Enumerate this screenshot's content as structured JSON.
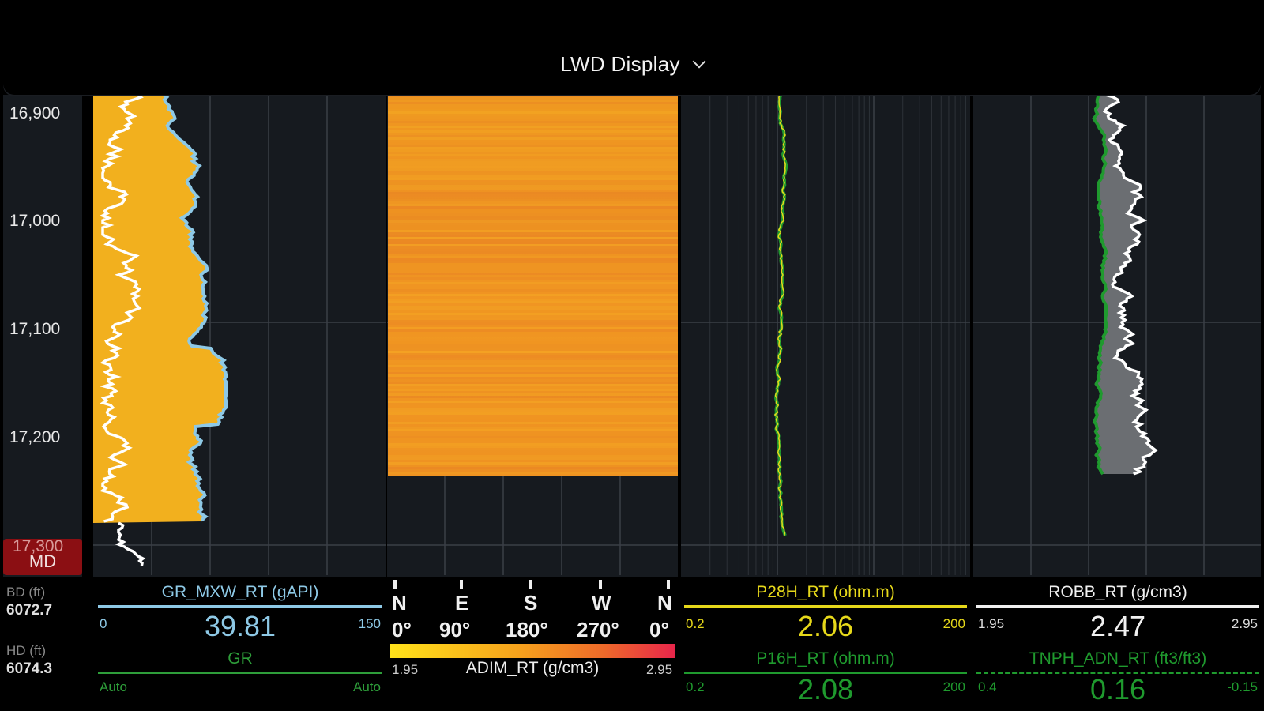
{
  "header": {
    "title": "LWD Display"
  },
  "depth_track": {
    "ticks": [
      "16,900",
      "17,000",
      "17,100",
      "17,200",
      "17,300"
    ],
    "md_label": "MD",
    "bd_label": "BD (ft)",
    "bd_value": "6072.7",
    "hd_label": "HD (ft)",
    "hd_value": "6074.3"
  },
  "gr_track": {
    "curve1": {
      "name": "GR_MXW_RT (gAPI)",
      "min": "0",
      "max": "150",
      "value": "39.81",
      "color": "#8ec9e6"
    },
    "curve2": {
      "name": "GR",
      "min": "Auto",
      "max": "Auto",
      "color": "#2e9e3a"
    },
    "fill_color": "#f2b01e"
  },
  "image_track": {
    "directions": [
      "N",
      "E",
      "S",
      "W",
      "N"
    ],
    "degrees": [
      "0°",
      "90°",
      "180°",
      "270°",
      "0°"
    ],
    "scale_name": "ADIM_RT (g/cm3)",
    "scale_min": "1.95",
    "scale_max": "2.95"
  },
  "res_track": {
    "curve1": {
      "name": "P28H_RT (ohm.m)",
      "min": "0.2",
      "max": "200",
      "value": "2.06",
      "color": "#e6d81a"
    },
    "curve2": {
      "name": "P16H_RT (ohm.m)",
      "min": "0.2",
      "max": "200",
      "value": "2.08",
      "color": "#1f9a2e"
    }
  },
  "density_track": {
    "curve1": {
      "name": "ROBB_RT (g/cm3)",
      "min": "1.95",
      "max": "2.95",
      "value": "2.47",
      "color": "#f0f0f0"
    },
    "curve2": {
      "name": "TNPH_ADN_RT (ft3/ft3)",
      "min": "0.4",
      "max": "-0.15",
      "value": "0.16",
      "color": "#1f9a2e"
    }
  }
}
